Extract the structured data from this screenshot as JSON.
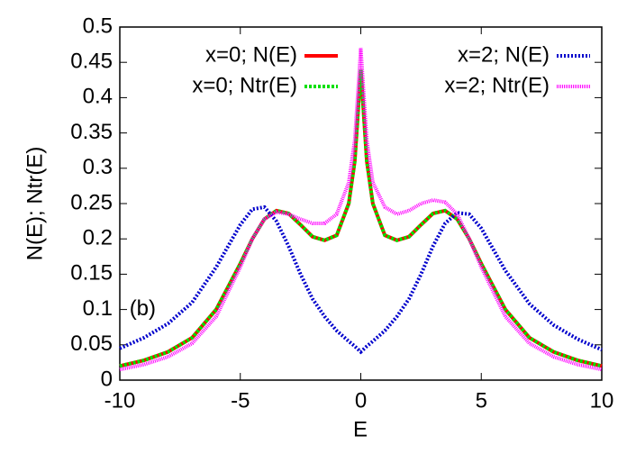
{
  "chart_data": {
    "type": "line",
    "x_label": "E",
    "y_label": "N(E); Ntr(E)",
    "annotation": "(b)",
    "x": [
      -10,
      -9,
      -8,
      -7,
      -6,
      -5,
      -4.5,
      -4,
      -3.5,
      -3,
      -2.5,
      -2,
      -1.5,
      -1,
      -0.5,
      -0.25,
      0,
      0.25,
      0.5,
      1,
      1.5,
      2,
      2.5,
      3,
      3.5,
      4,
      4.5,
      5,
      6,
      7,
      8,
      9,
      10
    ],
    "series": [
      {
        "name": "x=0; N(E)",
        "color": "#ff0000",
        "dash": "none",
        "values": [
          0.02,
          0.028,
          0.04,
          0.06,
          0.1,
          0.165,
          0.2,
          0.228,
          0.24,
          0.236,
          0.22,
          0.203,
          0.198,
          0.205,
          0.25,
          0.31,
          0.44,
          0.31,
          0.25,
          0.205,
          0.198,
          0.203,
          0.22,
          0.236,
          0.24,
          0.228,
          0.2,
          0.165,
          0.1,
          0.06,
          0.04,
          0.028,
          0.02
        ]
      },
      {
        "name": "x=0; Ntr(E)",
        "color": "#00e000",
        "dash": "3 2",
        "values": [
          0.02,
          0.028,
          0.04,
          0.06,
          0.1,
          0.165,
          0.2,
          0.228,
          0.24,
          0.236,
          0.22,
          0.203,
          0.198,
          0.205,
          0.25,
          0.31,
          0.44,
          0.31,
          0.25,
          0.205,
          0.198,
          0.203,
          0.22,
          0.236,
          0.24,
          0.228,
          0.2,
          0.165,
          0.1,
          0.06,
          0.04,
          0.028,
          0.02
        ]
      },
      {
        "name": "x=2; N(E)",
        "color": "#0000cc",
        "dash": "2 2",
        "values": [
          0.045,
          0.06,
          0.08,
          0.11,
          0.16,
          0.22,
          0.242,
          0.245,
          0.225,
          0.19,
          0.15,
          0.115,
          0.09,
          0.07,
          0.055,
          0.048,
          0.04,
          0.048,
          0.055,
          0.07,
          0.09,
          0.115,
          0.15,
          0.19,
          0.222,
          0.237,
          0.235,
          0.215,
          0.155,
          0.108,
          0.078,
          0.058,
          0.043
        ]
      },
      {
        "name": "x=2; Ntr(E)",
        "color": "#ff00ff",
        "dash": "1 1",
        "values": [
          0.015,
          0.022,
          0.033,
          0.052,
          0.09,
          0.16,
          0.2,
          0.228,
          0.238,
          0.235,
          0.228,
          0.222,
          0.222,
          0.235,
          0.28,
          0.34,
          0.47,
          0.34,
          0.28,
          0.245,
          0.235,
          0.24,
          0.25,
          0.255,
          0.252,
          0.235,
          0.2,
          0.16,
          0.09,
          0.052,
          0.033,
          0.022,
          0.015
        ]
      }
    ],
    "xlim": [
      -10,
      10
    ],
    "ylim": [
      0,
      0.5
    ],
    "xticks": [
      -10,
      -5,
      0,
      5,
      10
    ],
    "yticks": [
      0,
      0.05,
      0.1,
      0.15,
      0.2,
      0.25,
      0.3,
      0.35,
      0.4,
      0.45,
      0.5
    ]
  }
}
